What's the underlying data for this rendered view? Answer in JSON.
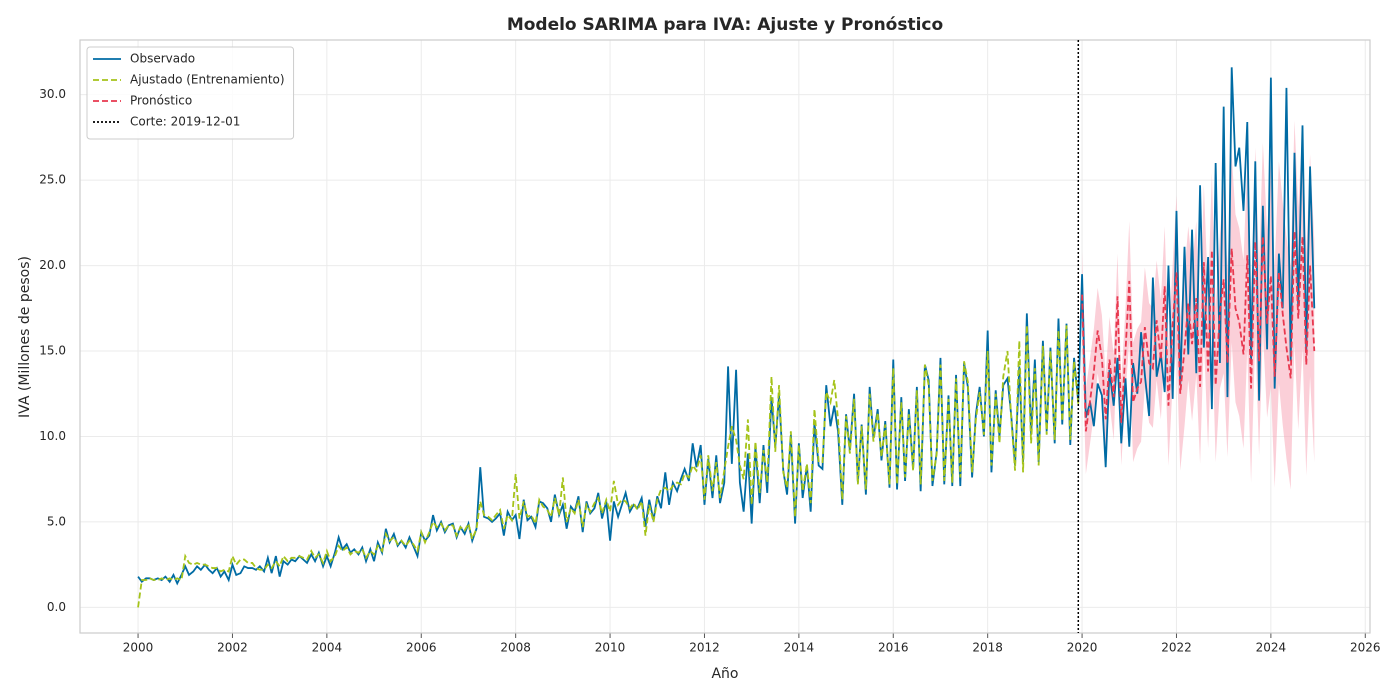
{
  "chart_data": {
    "type": "line",
    "title": "Modelo SARIMA para IVA: Ajuste y Pronóstico",
    "xlabel": "Año",
    "ylabel": "IVA (Millones de pesos)",
    "grid": true,
    "legend": "upper left",
    "xlim": [
      1998.77,
      2026.1
    ],
    "xticks": [
      2000,
      2002,
      2004,
      2006,
      2008,
      2010,
      2012,
      2014,
      2016,
      2018,
      2020,
      2022,
      2024,
      2026
    ],
    "ylim": [
      -1.5,
      33.2
    ],
    "yticks": [
      {
        "value": 0,
        "label": "0.0"
      },
      {
        "value": 5,
        "label": "5.0"
      },
      {
        "value": 10,
        "label": "10.0"
      },
      {
        "value": 15,
        "label": "15.0"
      },
      {
        "value": 20,
        "label": "20.0"
      },
      {
        "value": 25,
        "label": "25.0"
      },
      {
        "value": 30,
        "label": "30.0"
      }
    ],
    "x": [
      2000,
      2000.08,
      2000.17,
      2000.25,
      2000.33,
      2000.42,
      2000.5,
      2000.58,
      2000.67,
      2000.75,
      2000.83,
      2000.92,
      2001,
      2001.08,
      2001.17,
      2001.25,
      2001.33,
      2001.42,
      2001.5,
      2001.58,
      2001.67,
      2001.75,
      2001.83,
      2001.92,
      2002,
      2002.08,
      2002.17,
      2002.25,
      2002.33,
      2002.42,
      2002.5,
      2002.58,
      2002.67,
      2002.75,
      2002.83,
      2002.92,
      2003,
      2003.08,
      2003.17,
      2003.25,
      2003.33,
      2003.42,
      2003.5,
      2003.58,
      2003.67,
      2003.75,
      2003.83,
      2003.92,
      2004,
      2004.08,
      2004.17,
      2004.25,
      2004.33,
      2004.42,
      2004.5,
      2004.58,
      2004.67,
      2004.75,
      2004.83,
      2004.92,
      2005,
      2005.08,
      2005.17,
      2005.25,
      2005.33,
      2005.42,
      2005.5,
      2005.58,
      2005.67,
      2005.75,
      2005.83,
      2005.92,
      2006,
      2006.08,
      2006.17,
      2006.25,
      2006.33,
      2006.42,
      2006.5,
      2006.58,
      2006.67,
      2006.75,
      2006.83,
      2006.92,
      2007,
      2007.08,
      2007.17,
      2007.25,
      2007.33,
      2007.42,
      2007.5,
      2007.58,
      2007.67,
      2007.75,
      2007.83,
      2007.92,
      2008,
      2008.08,
      2008.17,
      2008.25,
      2008.33,
      2008.42,
      2008.5,
      2008.58,
      2008.67,
      2008.75,
      2008.83,
      2008.92,
      2009,
      2009.08,
      2009.17,
      2009.25,
      2009.33,
      2009.42,
      2009.5,
      2009.58,
      2009.67,
      2009.75,
      2009.83,
      2009.92,
      2010,
      2010.08,
      2010.17,
      2010.25,
      2010.33,
      2010.42,
      2010.5,
      2010.58,
      2010.67,
      2010.75,
      2010.83,
      2010.92,
      2011,
      2011.08,
      2011.17,
      2011.25,
      2011.33,
      2011.42,
      2011.5,
      2011.58,
      2011.67,
      2011.75,
      2011.83,
      2011.92,
      2012,
      2012.08,
      2012.17,
      2012.25,
      2012.33,
      2012.42,
      2012.5,
      2012.58,
      2012.67,
      2012.75,
      2012.83,
      2012.92,
      2013,
      2013.08,
      2013.17,
      2013.25,
      2013.33,
      2013.42,
      2013.5,
      2013.58,
      2013.67,
      2013.75,
      2013.83,
      2013.92,
      2014,
      2014.08,
      2014.17,
      2014.25,
      2014.33,
      2014.42,
      2014.5,
      2014.58,
      2014.67,
      2014.75,
      2014.83,
      2014.92,
      2015,
      2015.08,
      2015.17,
      2015.25,
      2015.33,
      2015.42,
      2015.5,
      2015.58,
      2015.67,
      2015.75,
      2015.83,
      2015.92,
      2016,
      2016.08,
      2016.17,
      2016.25,
      2016.33,
      2016.42,
      2016.5,
      2016.58,
      2016.67,
      2016.75,
      2016.83,
      2016.92,
      2017,
      2017.08,
      2017.17,
      2017.25,
      2017.33,
      2017.42,
      2017.5,
      2017.58,
      2017.67,
      2017.75,
      2017.83,
      2017.92,
      2018,
      2018.08,
      2018.17,
      2018.25,
      2018.33,
      2018.42,
      2018.5,
      2018.58,
      2018.67,
      2018.75,
      2018.83,
      2018.92,
      2019,
      2019.08,
      2019.17,
      2019.25,
      2019.33,
      2019.42,
      2019.5,
      2019.58,
      2019.67,
      2019.75,
      2019.83,
      2019.92,
      2020,
      2020.08,
      2020.17,
      2020.25,
      2020.33,
      2020.42,
      2020.5,
      2020.58,
      2020.67,
      2020.75,
      2020.83,
      2020.92,
      2021,
      2021.08,
      2021.17,
      2021.25,
      2021.33,
      2021.42,
      2021.5,
      2021.58,
      2021.67,
      2021.75,
      2021.83,
      2021.92,
      2022,
      2022.08,
      2022.17,
      2022.25,
      2022.33,
      2022.42,
      2022.5,
      2022.58,
      2022.67,
      2022.75,
      2022.83,
      2022.92,
      2023,
      2023.08,
      2023.17,
      2023.25,
      2023.33,
      2023.42,
      2023.5,
      2023.58,
      2023.67,
      2023.75,
      2023.83,
      2023.92,
      2024,
      2024.08,
      2024.17,
      2024.25,
      2024.33,
      2024.42,
      2024.5,
      2024.58,
      2024.67,
      2024.75,
      2024.83,
      2024.92
    ],
    "series": [
      {
        "name": "Observado",
        "color": "#006ba4",
        "dash": "solid",
        "values": [
          1.8,
          1.5,
          1.7,
          1.7,
          1.6,
          1.7,
          1.6,
          1.8,
          1.5,
          1.9,
          1.4,
          1.9,
          2.4,
          1.9,
          2.1,
          2.4,
          2.2,
          2.5,
          2.2,
          2.0,
          2.3,
          1.8,
          2.1,
          1.6,
          2.5,
          1.9,
          2.0,
          2.4,
          2.3,
          2.3,
          2.2,
          2.4,
          2.1,
          2.9,
          2.0,
          3.0,
          1.8,
          2.7,
          2.5,
          2.8,
          2.7,
          3.0,
          2.8,
          2.6,
          3.1,
          2.7,
          3.2,
          2.4,
          3.0,
          2.4,
          3.2,
          4.1,
          3.4,
          3.7,
          3.2,
          3.4,
          3.1,
          3.5,
          2.7,
          3.4,
          2.7,
          3.8,
          3.2,
          4.6,
          3.8,
          4.3,
          3.6,
          3.9,
          3.5,
          4.1,
          3.6,
          3.0,
          4.4,
          3.9,
          4.2,
          5.4,
          4.5,
          5.0,
          4.4,
          4.8,
          4.9,
          4.1,
          4.7,
          4.3,
          4.9,
          3.9,
          4.6,
          8.2,
          5.3,
          5.2,
          5.0,
          5.2,
          5.5,
          4.2,
          5.6,
          5.1,
          5.4,
          4.0,
          6.3,
          5.1,
          5.3,
          4.7,
          6.2,
          6.1,
          5.8,
          5.0,
          6.6,
          5.4,
          6.0,
          4.6,
          5.9,
          5.6,
          6.5,
          4.4,
          6.2,
          5.5,
          5.8,
          6.7,
          5.2,
          6.2,
          3.9,
          6.2,
          5.3,
          6.0,
          6.7,
          5.6,
          6.0,
          5.8,
          6.4,
          4.7,
          6.3,
          5.1,
          6.5,
          5.8,
          7.9,
          6.0,
          7.3,
          6.8,
          7.5,
          8.1,
          7.4,
          9.6,
          8.2,
          9.5,
          6.0,
          8.7,
          6.4,
          8.9,
          6.1,
          7.3,
          14.1,
          8.4,
          13.9,
          7.3,
          5.6,
          9.0,
          4.9,
          9.4,
          6.1,
          9.5,
          6.7,
          12.3,
          9.4,
          12.4,
          8.0,
          6.6,
          10.1,
          4.9,
          9.6,
          6.4,
          8.3,
          5.6,
          10.8,
          8.3,
          8.1,
          13.0,
          10.6,
          11.8,
          10.3,
          6.0,
          11.3,
          9.2,
          12.5,
          7.3,
          10.7,
          6.6,
          12.9,
          9.9,
          11.6,
          8.6,
          10.9,
          7.0,
          14.5,
          6.9,
          12.3,
          7.4,
          11.6,
          8.1,
          12.9,
          6.8,
          14.2,
          13.3,
          7.1,
          9.1,
          14.6,
          7.2,
          12.4,
          7.1,
          13.6,
          7.1,
          14.3,
          12.9,
          7.6,
          11.3,
          12.9,
          10.0,
          16.2,
          7.9,
          12.7,
          10.0,
          13.0,
          13.4,
          11.2,
          8.3,
          14.1,
          8.5,
          17.2,
          10.1,
          14.5,
          8.5,
          15.6,
          10.3,
          15.2,
          9.6,
          16.9,
          10.7,
          16.6,
          9.5,
          14.6,
          12.0,
          19.5,
          11.1,
          12.0,
          10.6,
          13.1,
          12.4,
          8.2,
          13.9,
          11.8,
          14.6,
          9.6,
          13.4,
          9.4,
          14.3,
          12.5,
          16.1,
          13.6,
          11.2,
          19.3,
          13.5,
          14.8,
          12.6,
          20.0,
          12.2,
          23.2,
          13.0,
          21.1,
          14.8,
          22.1,
          13.7,
          24.7,
          15.2,
          20.5,
          11.6,
          26.0,
          14.3,
          29.3,
          12.3,
          31.6,
          25.8,
          26.9,
          23.2,
          28.4,
          14.5,
          26.1,
          12.1,
          23.5,
          15.1,
          31.0,
          12.8,
          20.7,
          17.5,
          30.4,
          14.4,
          26.6,
          17.6,
          28.2,
          15.0,
          25.8,
          17.5
        ]
      },
      {
        "name": "Ajustado (Entrenamiento)",
        "color": "#a5c31a",
        "dash": "dashed",
        "values": [
          0.0,
          1.6,
          1.6,
          1.7,
          1.6,
          1.6,
          1.7,
          1.6,
          1.7,
          1.6,
          1.7,
          1.6,
          3.0,
          2.6,
          2.5,
          2.6,
          2.5,
          2.5,
          2.4,
          2.3,
          2.3,
          2.1,
          2.2,
          2.1,
          3.0,
          2.5,
          2.8,
          2.8,
          2.6,
          2.6,
          2.3,
          2.2,
          2.2,
          2.5,
          2.3,
          2.7,
          2.4,
          3.0,
          2.7,
          2.9,
          2.9,
          3.0,
          2.9,
          2.8,
          3.3,
          2.9,
          3.1,
          2.6,
          3.3,
          2.7,
          3.0,
          3.6,
          3.3,
          3.5,
          3.1,
          3.3,
          3.2,
          3.4,
          2.9,
          3.3,
          3.1,
          3.6,
          3.3,
          4.3,
          3.9,
          4.1,
          3.7,
          3.9,
          3.6,
          3.9,
          3.7,
          3.3,
          4.4,
          3.8,
          4.4,
          5.0,
          4.7,
          4.9,
          4.5,
          4.8,
          4.8,
          4.2,
          4.7,
          4.5,
          4.9,
          4.0,
          4.6,
          6.2,
          5.4,
          5.3,
          5.1,
          5.4,
          5.7,
          4.6,
          5.4,
          5.1,
          7.8,
          5.2,
          6.2,
          5.3,
          5.4,
          4.9,
          6.3,
          5.9,
          5.7,
          5.3,
          6.4,
          5.4,
          7.6,
          5.0,
          5.8,
          5.5,
          6.3,
          4.7,
          6.0,
          5.6,
          6.1,
          6.4,
          5.5,
          6.3,
          5.6,
          7.4,
          6.0,
          6.3,
          6.2,
          5.8,
          6.1,
          5.7,
          6.2,
          4.2,
          6.0,
          5.0,
          6.3,
          6.9,
          7.0,
          6.8,
          7.1,
          7.3,
          7.2,
          7.8,
          7.6,
          8.3,
          8.0,
          8.9,
          6.3,
          8.9,
          6.8,
          8.5,
          6.4,
          8.0,
          9.4,
          10.6,
          9.8,
          8.3,
          7.5,
          11.0,
          6.0,
          9.7,
          6.7,
          9.2,
          7.3,
          13.5,
          9.1,
          13.0,
          7.9,
          7.0,
          10.3,
          5.3,
          9.5,
          6.8,
          8.4,
          6.1,
          11.6,
          8.5,
          8.5,
          12.6,
          12.0,
          13.3,
          11.0,
          6.3,
          11.2,
          9.0,
          12.2,
          7.2,
          10.6,
          6.9,
          12.5,
          9.7,
          11.4,
          8.8,
          10.7,
          7.2,
          14.0,
          7.2,
          12.0,
          7.6,
          11.3,
          8.0,
          12.7,
          7.2,
          14.2,
          13.0,
          7.4,
          9.0,
          14.2,
          7.4,
          12.2,
          7.3,
          13.4,
          7.6,
          14.4,
          13.2,
          7.9,
          11.0,
          12.6,
          10.1,
          15.0,
          8.3,
          12.5,
          9.6,
          13.5,
          15.0,
          11.0,
          8.0,
          15.6,
          7.9,
          16.5,
          9.6,
          14.0,
          8.3,
          15.3,
          10.1,
          15.0,
          9.8,
          16.2,
          10.9,
          16.5,
          9.8,
          14.4,
          11.9,
          null,
          null,
          null,
          null,
          null,
          null,
          null,
          null,
          null,
          null,
          null,
          null,
          null,
          null,
          null,
          null,
          null,
          null,
          null,
          null,
          null,
          null,
          null,
          null,
          null,
          null,
          null,
          null,
          null,
          null,
          null,
          null,
          null,
          null,
          null,
          null,
          null,
          null,
          null,
          null,
          null,
          null,
          null,
          null,
          null,
          null,
          null,
          null,
          null,
          null,
          null,
          null,
          null,
          null,
          null,
          null,
          null,
          null,
          null,
          null
        ]
      },
      {
        "name": "Pronóstico",
        "color": "#e8384f",
        "dash": "dashed",
        "band_color": "#f7a8b8",
        "x": [
          2020,
          2020.08,
          2020.17,
          2020.25,
          2020.33,
          2020.42,
          2020.5,
          2020.58,
          2020.67,
          2020.75,
          2020.83,
          2020.92,
          2021,
          2021.08,
          2021.17,
          2021.25,
          2021.33,
          2021.42,
          2021.5,
          2021.58,
          2021.67,
          2021.75,
          2021.83,
          2021.92,
          2022,
          2022.08,
          2022.17,
          2022.25,
          2022.33,
          2022.42,
          2022.5,
          2022.58,
          2022.67,
          2022.75,
          2022.83,
          2022.92,
          2023,
          2023.08,
          2023.17,
          2023.25,
          2023.33,
          2023.42,
          2023.5,
          2023.58,
          2023.67,
          2023.75,
          2023.83,
          2023.92,
          2024,
          2024.08,
          2024.17,
          2024.25,
          2024.33,
          2024.42,
          2024.5,
          2024.58,
          2024.67,
          2024.75,
          2024.83,
          2024.92
        ],
        "values": [
          18.3,
          10.3,
          12.1,
          13.8,
          16.2,
          14.6,
          11.0,
          14.5,
          12.3,
          18.2,
          10.8,
          15.0,
          19.1,
          12.0,
          12.8,
          13.2,
          16.4,
          14.3,
          14.0,
          16.8,
          14.5,
          18.8,
          11.8,
          16.6,
          19.6,
          12.5,
          15.1,
          17.8,
          15.4,
          18.1,
          12.9,
          20.2,
          13.8,
          20.9,
          13.0,
          17.3,
          19.2,
          14.3,
          21.0,
          17.5,
          16.7,
          14.8,
          20.6,
          12.8,
          21.4,
          14.4,
          21.7,
          16.6,
          19.4,
          13.5,
          19.6,
          17.2,
          15.2,
          13.4,
          22.0,
          16.9,
          21.7,
          14.2,
          20.0,
          15.0
        ],
        "lower": [
          15.8,
          7.8,
          9.6,
          11.3,
          13.7,
          12.1,
          8.5,
          12.0,
          9.8,
          15.7,
          8.3,
          12.5,
          15.6,
          8.5,
          9.3,
          9.7,
          12.9,
          10.8,
          10.5,
          13.3,
          11.0,
          15.3,
          8.3,
          13.1,
          15.1,
          8.0,
          10.6,
          13.3,
          10.9,
          13.6,
          8.4,
          15.7,
          9.3,
          16.4,
          8.5,
          12.8,
          13.7,
          8.8,
          15.5,
          12.0,
          11.2,
          9.3,
          15.1,
          7.3,
          15.9,
          8.9,
          16.2,
          11.1,
          12.9,
          7.0,
          13.1,
          10.7,
          8.7,
          6.9,
          15.5,
          10.4,
          15.2,
          7.7,
          13.5,
          8.5
        ],
        "upper": [
          20.8,
          12.8,
          14.6,
          16.3,
          18.7,
          17.1,
          13.5,
          17.0,
          14.8,
          20.7,
          13.3,
          17.5,
          22.6,
          15.5,
          16.3,
          16.7,
          19.9,
          17.8,
          17.5,
          20.3,
          18.0,
          22.3,
          15.3,
          20.1,
          24.1,
          17.0,
          19.6,
          22.3,
          19.9,
          22.6,
          17.4,
          24.7,
          18.3,
          25.4,
          17.5,
          21.8,
          24.7,
          19.8,
          26.5,
          23.0,
          22.2,
          20.3,
          26.1,
          18.3,
          26.9,
          19.9,
          27.2,
          22.1,
          25.9,
          20.0,
          26.1,
          23.7,
          21.7,
          19.9,
          28.5,
          23.4,
          28.2,
          20.7,
          26.5,
          21.5
        ]
      }
    ],
    "cutoff": {
      "label": "Corte: 2019-12-01",
      "x": 2019.92,
      "color": "#000000",
      "dash": "dotted"
    }
  }
}
